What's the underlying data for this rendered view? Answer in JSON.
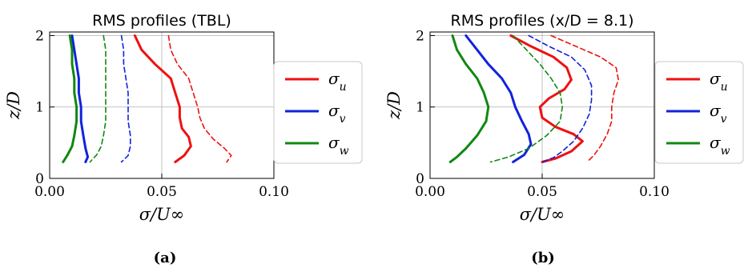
{
  "chart_data": [
    {
      "type": "line",
      "panel_label": "(a)",
      "title": "RMS profiles (TBL)",
      "xlabel": "σ/U∞",
      "ylabel": "z/D",
      "xlim": [
        0.0,
        0.1
      ],
      "ylim": [
        0.0,
        2.05
      ],
      "xticks": [
        "0.00",
        "0.05",
        "0.10"
      ],
      "yticks": [
        "0",
        "1",
        "2"
      ],
      "grid_lines": {
        "x": [
          0.05
        ],
        "y": [
          1,
          2
        ]
      },
      "legend": {
        "placement": "right-outside",
        "entries": [
          "σu",
          "σv",
          "σw"
        ]
      },
      "series": [
        {
          "name": "σu",
          "color": "#ee1111",
          "dash": false,
          "points": [
            [
              0.038,
              2.0
            ],
            [
              0.041,
              1.8
            ],
            [
              0.047,
              1.6
            ],
            [
              0.054,
              1.4
            ],
            [
              0.056,
              1.2
            ],
            [
              0.058,
              1.0
            ],
            [
              0.058,
              0.85
            ],
            [
              0.059,
              0.7
            ],
            [
              0.062,
              0.58
            ],
            [
              0.063,
              0.45
            ],
            [
              0.06,
              0.32
            ],
            [
              0.056,
              0.23
            ]
          ]
        },
        {
          "name": "σu",
          "color": "#ee1111",
          "dash": true,
          "points": [
            [
              0.053,
              2.0
            ],
            [
              0.054,
              1.8
            ],
            [
              0.057,
              1.6
            ],
            [
              0.062,
              1.4
            ],
            [
              0.064,
              1.2
            ],
            [
              0.066,
              1.0
            ],
            [
              0.067,
              0.85
            ],
            [
              0.069,
              0.7
            ],
            [
              0.073,
              0.55
            ],
            [
              0.078,
              0.42
            ],
            [
              0.081,
              0.32
            ],
            [
              0.079,
              0.23
            ]
          ]
        },
        {
          "name": "σv",
          "color": "#1122dd",
          "dash": false,
          "points": [
            [
              0.01,
              2.0
            ],
            [
              0.011,
              1.8
            ],
            [
              0.012,
              1.6
            ],
            [
              0.013,
              1.4
            ],
            [
              0.013,
              1.2
            ],
            [
              0.014,
              1.0
            ],
            [
              0.014,
              0.8
            ],
            [
              0.015,
              0.6
            ],
            [
              0.016,
              0.42
            ],
            [
              0.017,
              0.3
            ],
            [
              0.016,
              0.23
            ]
          ]
        },
        {
          "name": "σv",
          "color": "#1122dd",
          "dash": true,
          "points": [
            [
              0.032,
              2.0
            ],
            [
              0.033,
              1.8
            ],
            [
              0.033,
              1.6
            ],
            [
              0.034,
              1.4
            ],
            [
              0.035,
              1.2
            ],
            [
              0.035,
              1.0
            ],
            [
              0.035,
              0.8
            ],
            [
              0.036,
              0.6
            ],
            [
              0.036,
              0.45
            ],
            [
              0.035,
              0.32
            ],
            [
              0.032,
              0.23
            ]
          ]
        },
        {
          "name": "σw",
          "color": "#118811",
          "dash": false,
          "points": [
            [
              0.009,
              2.0
            ],
            [
              0.01,
              1.8
            ],
            [
              0.01,
              1.6
            ],
            [
              0.011,
              1.4
            ],
            [
              0.011,
              1.2
            ],
            [
              0.012,
              1.0
            ],
            [
              0.012,
              0.8
            ],
            [
              0.011,
              0.6
            ],
            [
              0.01,
              0.45
            ],
            [
              0.008,
              0.33
            ],
            [
              0.006,
              0.23
            ]
          ]
        },
        {
          "name": "σw",
          "color": "#118811",
          "dash": true,
          "points": [
            [
              0.024,
              2.0
            ],
            [
              0.025,
              1.8
            ],
            [
              0.025,
              1.6
            ],
            [
              0.025,
              1.4
            ],
            [
              0.025,
              1.2
            ],
            [
              0.025,
              1.0
            ],
            [
              0.025,
              0.8
            ],
            [
              0.024,
              0.6
            ],
            [
              0.023,
              0.45
            ],
            [
              0.021,
              0.33
            ],
            [
              0.018,
              0.23
            ]
          ]
        }
      ]
    },
    {
      "type": "line",
      "panel_label": "(b)",
      "title": "RMS profiles (x/D = 8.1)",
      "xlabel": "σ/U∞",
      "ylabel": "z/D",
      "xlim": [
        0.0,
        0.1
      ],
      "ylim": [
        0.0,
        2.05
      ],
      "xticks": [
        "0.00",
        "0.05",
        "0.10"
      ],
      "yticks": [
        "0",
        "1",
        "2"
      ],
      "grid_lines": {
        "x": [
          0.05
        ],
        "y": [
          1,
          2
        ]
      },
      "legend": {
        "placement": "right-outside",
        "entries": [
          "σu",
          "σv",
          "σw"
        ]
      },
      "series": [
        {
          "name": "σu",
          "color": "#ee1111",
          "dash": false,
          "points": [
            [
              0.036,
              2.0
            ],
            [
              0.045,
              1.85
            ],
            [
              0.055,
              1.7
            ],
            [
              0.061,
              1.55
            ],
            [
              0.063,
              1.38
            ],
            [
              0.06,
              1.25
            ],
            [
              0.053,
              1.12
            ],
            [
              0.049,
              1.0
            ],
            [
              0.05,
              0.85
            ],
            [
              0.056,
              0.72
            ],
            [
              0.064,
              0.62
            ],
            [
              0.068,
              0.52
            ],
            [
              0.063,
              0.38
            ],
            [
              0.056,
              0.28
            ],
            [
              0.05,
              0.23
            ]
          ]
        },
        {
          "name": "σu",
          "color": "#ee1111",
          "dash": true,
          "points": [
            [
              0.054,
              2.0
            ],
            [
              0.065,
              1.85
            ],
            [
              0.076,
              1.7
            ],
            [
              0.083,
              1.55
            ],
            [
              0.084,
              1.38
            ],
            [
              0.082,
              1.2
            ],
            [
              0.081,
              1.0
            ],
            [
              0.081,
              0.8
            ],
            [
              0.079,
              0.62
            ],
            [
              0.076,
              0.45
            ],
            [
              0.073,
              0.32
            ],
            [
              0.07,
              0.23
            ]
          ]
        },
        {
          "name": "σv",
          "color": "#1122dd",
          "dash": false,
          "points": [
            [
              0.016,
              2.0
            ],
            [
              0.021,
              1.8
            ],
            [
              0.026,
              1.6
            ],
            [
              0.032,
              1.4
            ],
            [
              0.036,
              1.2
            ],
            [
              0.038,
              1.0
            ],
            [
              0.041,
              0.8
            ],
            [
              0.044,
              0.62
            ],
            [
              0.045,
              0.48
            ],
            [
              0.042,
              0.33
            ],
            [
              0.037,
              0.23
            ]
          ]
        },
        {
          "name": "σv",
          "color": "#1122dd",
          "dash": true,
          "points": [
            [
              0.044,
              2.0
            ],
            [
              0.053,
              1.85
            ],
            [
              0.063,
              1.7
            ],
            [
              0.069,
              1.52
            ],
            [
              0.072,
              1.3
            ],
            [
              0.072,
              1.1
            ],
            [
              0.071,
              0.9
            ],
            [
              0.068,
              0.7
            ],
            [
              0.064,
              0.52
            ],
            [
              0.059,
              0.38
            ],
            [
              0.055,
              0.29
            ],
            [
              0.05,
              0.23
            ]
          ]
        },
        {
          "name": "σw",
          "color": "#118811",
          "dash": false,
          "points": [
            [
              0.01,
              2.0
            ],
            [
              0.012,
              1.8
            ],
            [
              0.016,
              1.6
            ],
            [
              0.021,
              1.4
            ],
            [
              0.024,
              1.2
            ],
            [
              0.026,
              1.0
            ],
            [
              0.025,
              0.8
            ],
            [
              0.021,
              0.6
            ],
            [
              0.016,
              0.42
            ],
            [
              0.012,
              0.3
            ],
            [
              0.009,
              0.23
            ]
          ]
        },
        {
          "name": "σw",
          "color": "#118811",
          "dash": true,
          "points": [
            [
              0.037,
              2.0
            ],
            [
              0.043,
              1.8
            ],
            [
              0.049,
              1.6
            ],
            [
              0.054,
              1.4
            ],
            [
              0.058,
              1.2
            ],
            [
              0.059,
              1.0
            ],
            [
              0.058,
              0.8
            ],
            [
              0.052,
              0.6
            ],
            [
              0.044,
              0.42
            ],
            [
              0.035,
              0.3
            ],
            [
              0.027,
              0.23
            ]
          ]
        }
      ]
    }
  ]
}
